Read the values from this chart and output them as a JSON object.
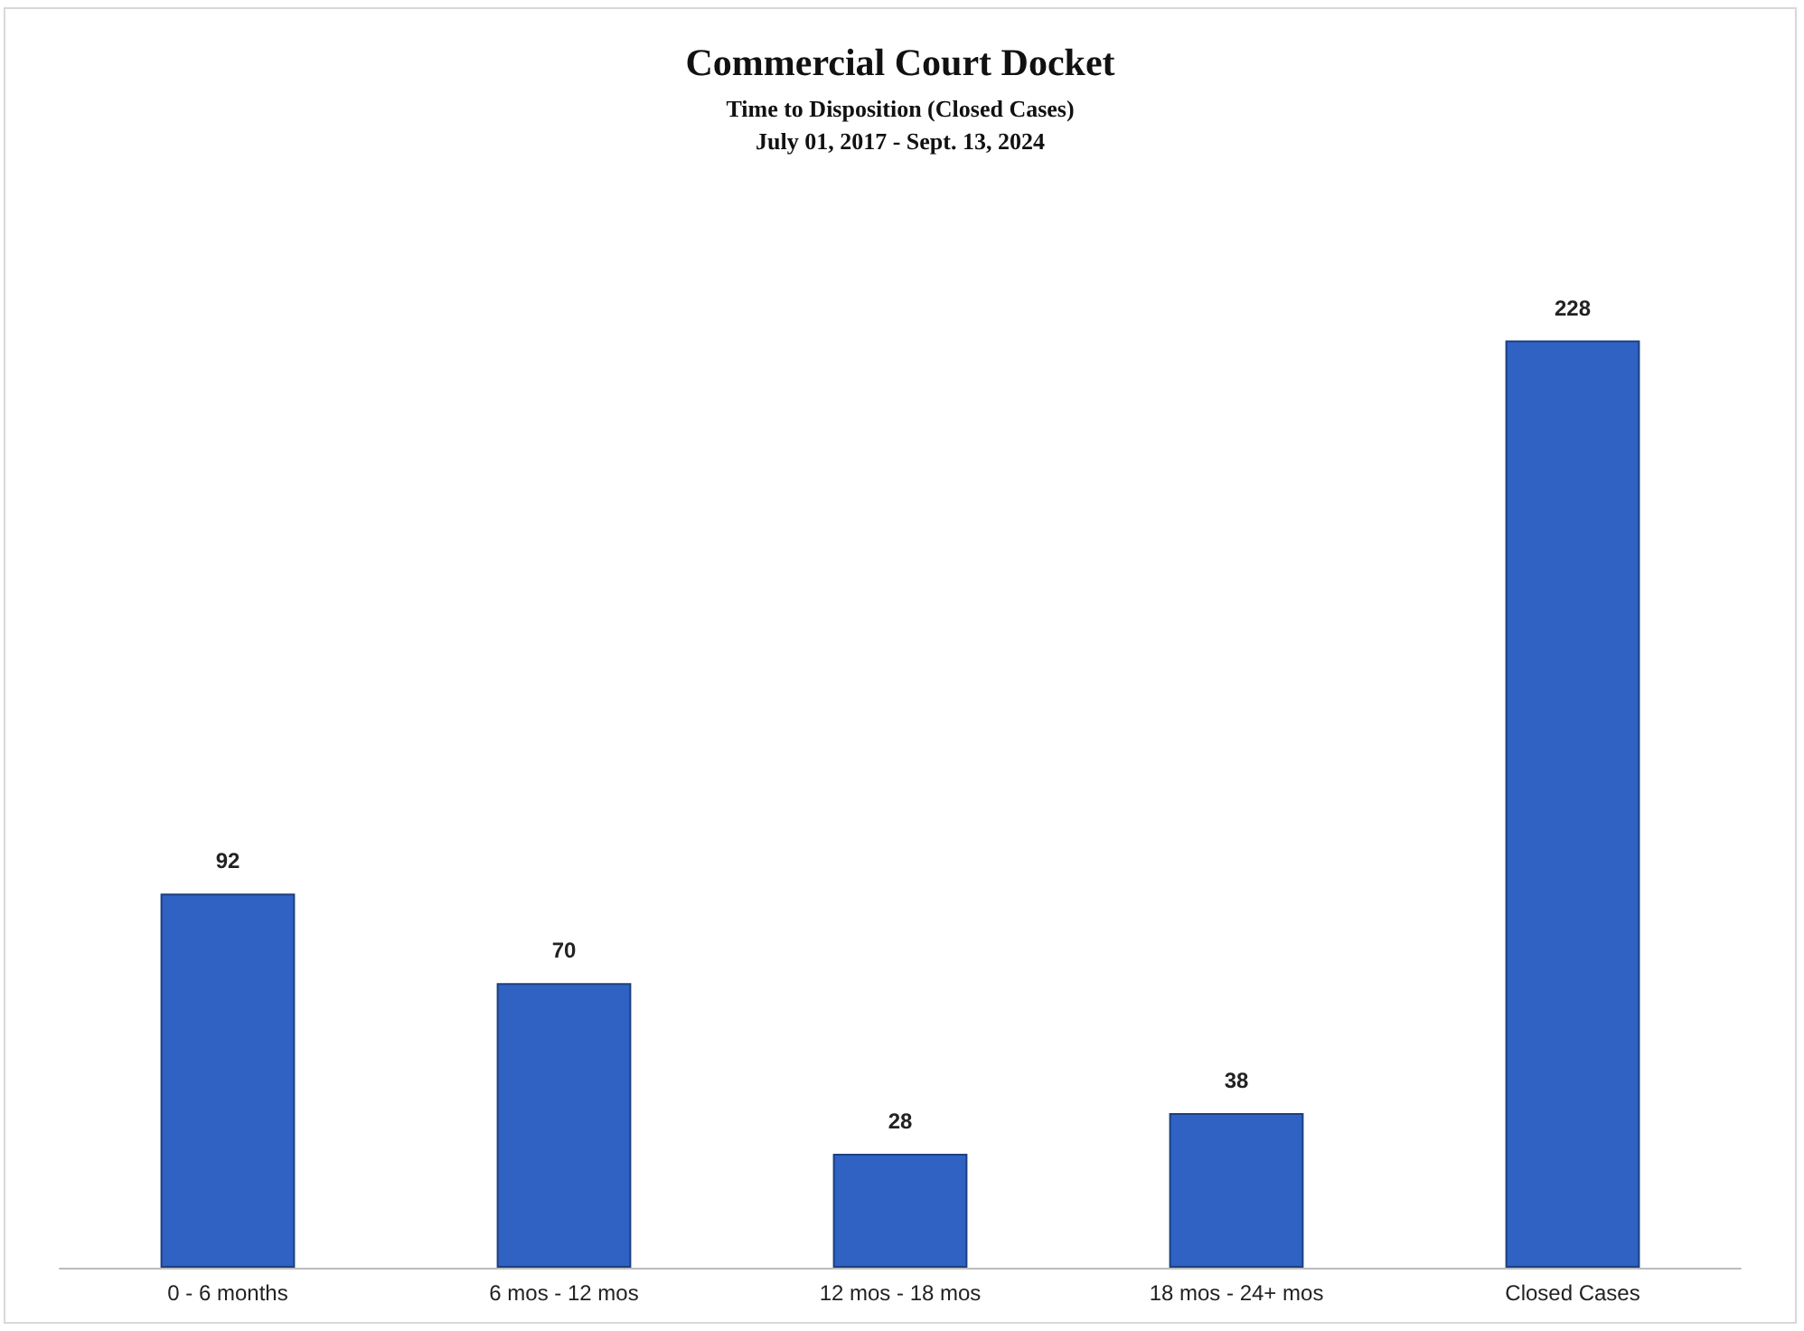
{
  "chart_data": {
    "type": "bar",
    "title": "Commercial Court Docket",
    "subtitle": "Time to Disposition (Closed Cases)\nJuly 01, 2017 - Sept. 13, 2024",
    "categories": [
      "0 - 6 months",
      "6 mos - 12 mos",
      "12 mos - 18 mos",
      "18 mos - 24+ mos",
      "Closed Cases"
    ],
    "values": [
      92,
      70,
      28,
      38,
      228
    ],
    "color": "#2f62c2",
    "data_labels": true
  }
}
